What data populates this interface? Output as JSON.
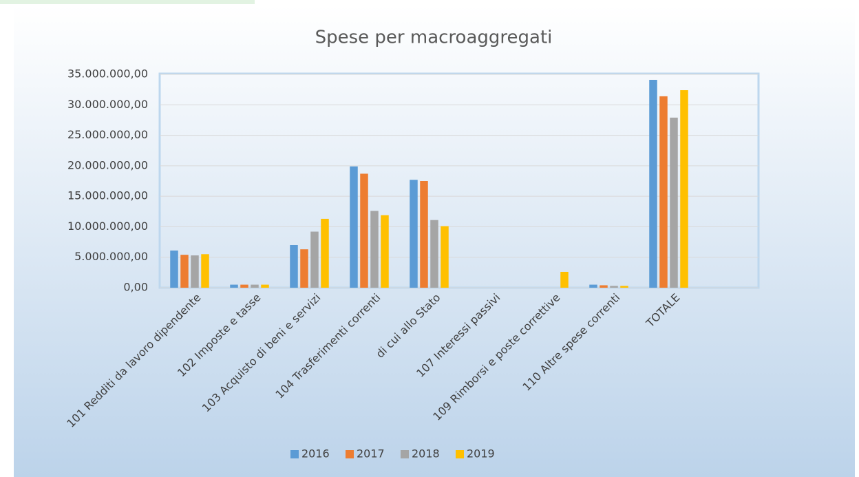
{
  "chart_data": {
    "type": "bar",
    "title": "Spese per macroaggregati",
    "categories": [
      "101 Redditi da lavoro dipendente",
      "102 Imposte e tasse",
      "103 Acquisto di beni e servizi",
      "104 Trasferimenti correnti",
      "di cui allo Stato",
      "107 Interessi passivi",
      "109 Rimborsi e poste correttive",
      "110 Altre spese correnti",
      "TOTALE",
      null
    ],
    "series": [
      {
        "name": "2016",
        "color": "#5b9bd5",
        "values": [
          6100000,
          500000,
          7000000,
          19900000,
          17700000,
          0,
          0,
          500000,
          34100000,
          null
        ]
      },
      {
        "name": "2017",
        "color": "#ed7d31",
        "values": [
          5400000,
          500000,
          6300000,
          18700000,
          17500000,
          0,
          0,
          400000,
          31400000,
          null
        ]
      },
      {
        "name": "2018",
        "color": "#a5a5a5",
        "values": [
          5300000,
          500000,
          9200000,
          12600000,
          11100000,
          0,
          0,
          300000,
          27900000,
          null
        ]
      },
      {
        "name": "2019",
        "color": "#ffc000",
        "values": [
          5500000,
          500000,
          11300000,
          11900000,
          10100000,
          0,
          2600000,
          300000,
          32400000,
          null
        ]
      }
    ],
    "ylim": [
      0,
      35000000
    ],
    "yticks": [
      {
        "value": 0,
        "label": "0,00"
      },
      {
        "value": 5000000,
        "label": "5.000.000,00"
      },
      {
        "value": 10000000,
        "label": "10.000.000,00"
      },
      {
        "value": 15000000,
        "label": "15.000.000,00"
      },
      {
        "value": 20000000,
        "label": "20.000.000,00"
      },
      {
        "value": 25000000,
        "label": "25.000.000,00"
      },
      {
        "value": 30000000,
        "label": "30.000.000,00"
      },
      {
        "value": 35000000,
        "label": "35.000.000,00"
      }
    ],
    "grid": true,
    "legend": "bottom"
  }
}
